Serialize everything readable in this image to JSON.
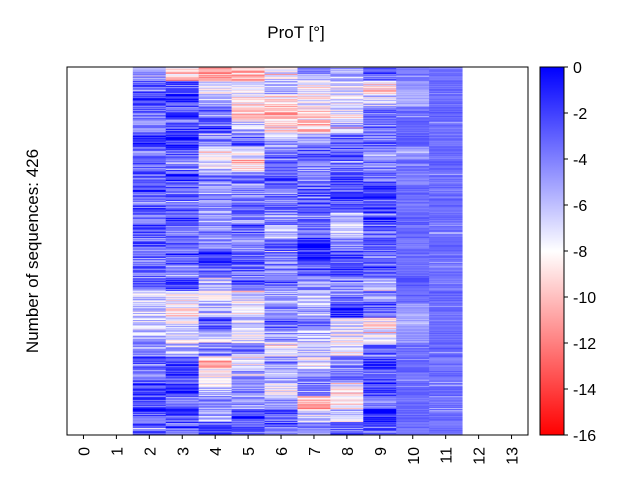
{
  "chart_data": {
    "type": "heatmap",
    "title": "ProT [°]",
    "xlabel": "",
    "ylabel": "Number of sequences: 426",
    "x_ticks": [
      "0",
      "1",
      "2",
      "3",
      "4",
      "5",
      "6",
      "7",
      "8",
      "9",
      "10",
      "11",
      "12",
      "13"
    ],
    "n_sequences": 426,
    "colorbar": {
      "min": -16,
      "max": 0,
      "ticks": [
        0,
        -2,
        -4,
        -6,
        -8,
        -10,
        -12,
        -14,
        -16
      ],
      "tick_labels": [
        "0",
        "-2",
        "-4",
        "-6",
        "-8",
        "-10",
        "-12",
        "-14",
        "-16"
      ],
      "colors": [
        "#ff0000",
        "#ffffff",
        "#0000ff"
      ],
      "mid_value": -8
    },
    "column_profiles": [
      {
        "col": 0,
        "values": []
      },
      {
        "col": 1,
        "values": []
      },
      {
        "col": 2,
        "values": [
          -4.5,
          -3.2,
          -2.4,
          -2.8,
          -3.0,
          -2.2,
          -3.1,
          -2.6,
          -3.4,
          -2.5,
          -3.0,
          -2.7,
          -2.3,
          -3.3,
          -2.9,
          -3.6,
          -3.2,
          -6.2,
          -6.6,
          -6.0,
          -5.6,
          -5.2,
          -2.6,
          -3.4,
          -1.8,
          -2.5,
          -2.1,
          -3.0
        ]
      },
      {
        "col": 3,
        "values": [
          -9.0,
          -3.0,
          -1.8,
          -2.6,
          -2.2,
          -1.0,
          -2.4,
          -3.0,
          -2.0,
          -3.2,
          -2.8,
          -2.6,
          -3.4,
          -3.0,
          -2.6,
          -3.0,
          -2.8,
          -7.6,
          -8.2,
          -7.0,
          -7.8,
          -6.0,
          -1.8,
          -2.6,
          -1.2,
          -3.2,
          -2.0,
          -2.6
        ]
      },
      {
        "col": 4,
        "values": [
          -10.2,
          -7.4,
          -6.2,
          -3.4,
          -2.0,
          -4.0,
          -7.6,
          -6.8,
          -4.4,
          -5.2,
          -4.8,
          -5.0,
          -4.2,
          -4.6,
          -1.2,
          -3.4,
          -6.0,
          -7.0,
          -5.4,
          -3.0,
          -6.0,
          -4.0,
          -10.0,
          -7.2,
          -6.2,
          -4.0,
          -5.6,
          -3.2
        ]
      },
      {
        "col": 5,
        "values": [
          -9.6,
          -7.6,
          -8.6,
          -10.0,
          -6.0,
          -3.0,
          -7.0,
          -9.0,
          -3.4,
          -4.0,
          -3.6,
          -4.2,
          -3.0,
          -3.6,
          -2.2,
          -3.8,
          -3.2,
          -7.4,
          -7.6,
          -6.6,
          -7.2,
          -3.8,
          -8.0,
          -5.4,
          -3.6,
          -4.4,
          -2.4,
          -3.0
        ]
      },
      {
        "col": 6,
        "values": [
          -7.4,
          -5.4,
          -9.2,
          -10.2,
          -7.8,
          -5.2,
          -3.4,
          -3.6,
          -2.8,
          -4.0,
          -3.6,
          -4.2,
          -5.6,
          -3.0,
          -3.8,
          -4.6,
          -3.2,
          -5.2,
          -4.0,
          -3.2,
          -5.0,
          -7.6,
          -4.6,
          -5.6,
          -7.6,
          -4.6,
          -2.8,
          -3.0
        ]
      },
      {
        "col": 7,
        "values": [
          -5.2,
          -7.4,
          -7.8,
          -8.6,
          -9.4,
          -5.4,
          -2.8,
          -3.6,
          -3.8,
          -3.4,
          -2.2,
          -3.8,
          -3.0,
          -1.2,
          -0.8,
          -3.2,
          -4.2,
          -6.6,
          -5.8,
          -3.6,
          -5.6,
          -6.4,
          -7.2,
          -4.2,
          -3.6,
          -10.4,
          -6.6,
          -3.4
        ]
      },
      {
        "col": 8,
        "values": [
          -5.6,
          -7.4,
          -6.8,
          -7.6,
          -6.4,
          -2.8,
          -2.6,
          -3.4,
          -1.8,
          -2.6,
          -3.0,
          -5.6,
          -6.4,
          -4.0,
          -3.0,
          -2.6,
          -4.0,
          -3.2,
          -1.6,
          -6.8,
          -7.2,
          -7.6,
          -4.0,
          -3.2,
          -7.6,
          -8.0,
          -6.0,
          -3.4
        ]
      },
      {
        "col": 9,
        "values": [
          -3.2,
          -8.6,
          -6.8,
          -3.2,
          -3.6,
          -3.4,
          -5.2,
          -3.8,
          -3.6,
          -2.4,
          -3.0,
          -2.2,
          -3.6,
          -3.0,
          -3.2,
          -2.4,
          -5.6,
          -4.0,
          -3.2,
          -8.4,
          -8.0,
          -3.6,
          -2.0,
          -3.0,
          -2.2,
          -3.6,
          -1.6,
          -3.6
        ]
      },
      {
        "col": 10,
        "values": [
          -3.4,
          -5.0,
          -5.4,
          -3.4,
          -3.2,
          -3.0,
          -4.6,
          -3.4,
          -4.0,
          -3.2,
          -3.6,
          -3.0,
          -3.4,
          -3.6,
          -3.2,
          -3.4,
          -3.0,
          -3.2,
          -5.0,
          -5.2,
          -4.8,
          -3.4,
          -3.2,
          -3.4,
          -3.0,
          -3.4,
          -3.2,
          -3.4
        ]
      },
      {
        "col": 11,
        "values": [
          -3.6,
          -3.4,
          -3.6,
          -3.2,
          -3.4,
          -3.6,
          -3.4,
          -3.2,
          -3.6,
          -3.4,
          -3.2,
          -3.6,
          -3.4,
          -3.2,
          -3.6,
          -3.4,
          -3.6,
          -3.2,
          -3.4,
          -3.6,
          -3.4,
          -3.2,
          -3.6,
          -3.4,
          -3.2,
          -3.6,
          -3.4,
          -3.6
        ]
      },
      {
        "col": 12,
        "values": []
      },
      {
        "col": 13,
        "values": []
      }
    ]
  }
}
